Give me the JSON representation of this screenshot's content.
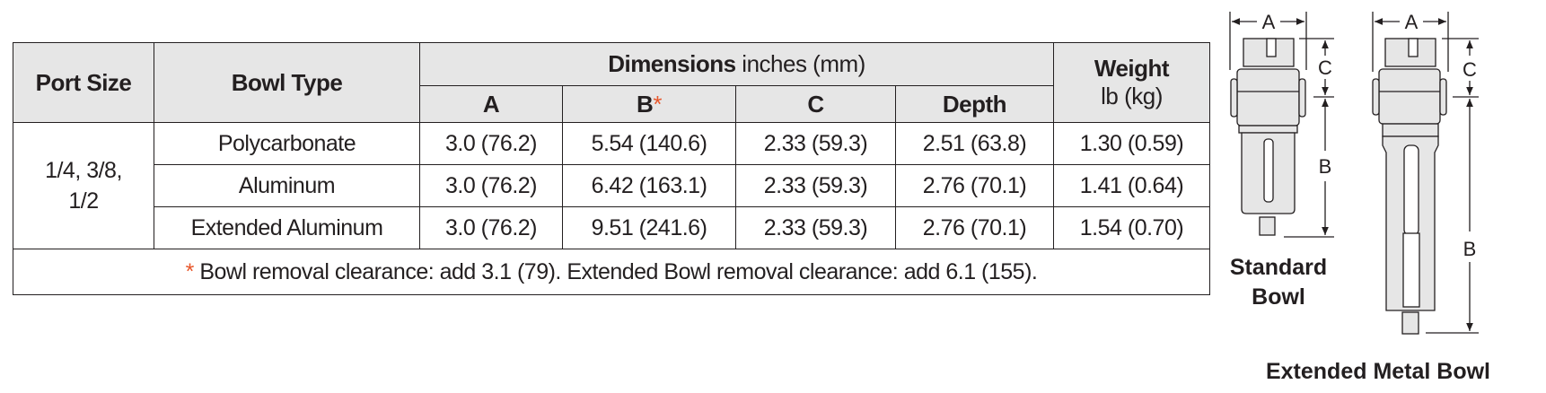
{
  "table": {
    "headers": {
      "port_size": "Port Size",
      "bowl_type": "Bowl Type",
      "dimensions": "Dimensions",
      "dimensions_unit": "inches (mm)",
      "weight": "Weight",
      "weight_unit": "lb (kg)",
      "a": "A",
      "b": "B",
      "b_marker": "*",
      "c": "C",
      "depth": "Depth"
    },
    "port_size": "1/4, 3/8, 1/2",
    "rows": [
      {
        "bowl_type": "Polycarbonate",
        "a": "3.0 (76.2)",
        "b": "5.54 (140.6)",
        "c": "2.33 (59.3)",
        "depth": "2.51 (63.8)",
        "weight": "1.30 (0.59)"
      },
      {
        "bowl_type": "Aluminum",
        "a": "3.0 (76.2)",
        "b": "6.42 (163.1)",
        "c": "2.33 (59.3)",
        "depth": "2.76 (70.1)",
        "weight": "1.41 (0.64)"
      },
      {
        "bowl_type": "Extended Aluminum",
        "a": "3.0 (76.2)",
        "b": "9.51 (241.6)",
        "c": "2.33 (59.3)",
        "depth": "2.76 (70.1)",
        "weight": "1.54 (0.70)"
      }
    ],
    "footnote_marker": "*",
    "footnote": "Bowl removal clearance: add 3.1 (79).  Extended Bowl removal clearance: add 6.1 (155).",
    "accent_color": "#e8562a",
    "header_bg": "#e6e6e6"
  },
  "figures": {
    "standard": {
      "caption": "Standard Bowl",
      "label_a": "A",
      "label_b": "B",
      "label_c": "C"
    },
    "extended": {
      "caption": "Extended Metal Bowl",
      "label_a": "A",
      "label_b": "B",
      "label_c": "C"
    }
  }
}
